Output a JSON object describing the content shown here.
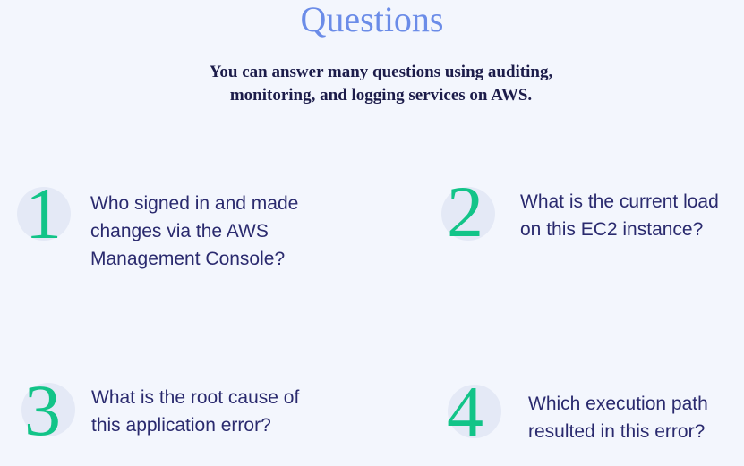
{
  "slide": {
    "title": "Questions",
    "subtitle": "You can answer many questions using auditing,\nmonitoring, and logging services on AWS."
  },
  "questions": [
    {
      "number": "1",
      "text": "Who signed in and made\nchanges via the AWS\nManagement Console?"
    },
    {
      "number": "2",
      "text": "What is the current load\non this EC2 instance?"
    },
    {
      "number": "3",
      "text": "What is the root cause of\nthis application error?"
    },
    {
      "number": "4",
      "text": "Which execution path\nresulted in this error?"
    }
  ],
  "colors": {
    "background": "#f3f6fd",
    "title": "#6b8ce8",
    "subtitle": "#1c1c4a",
    "number": "#12c488",
    "number_circle": "#e4e9f6",
    "question_text": "#2a2a6e"
  }
}
